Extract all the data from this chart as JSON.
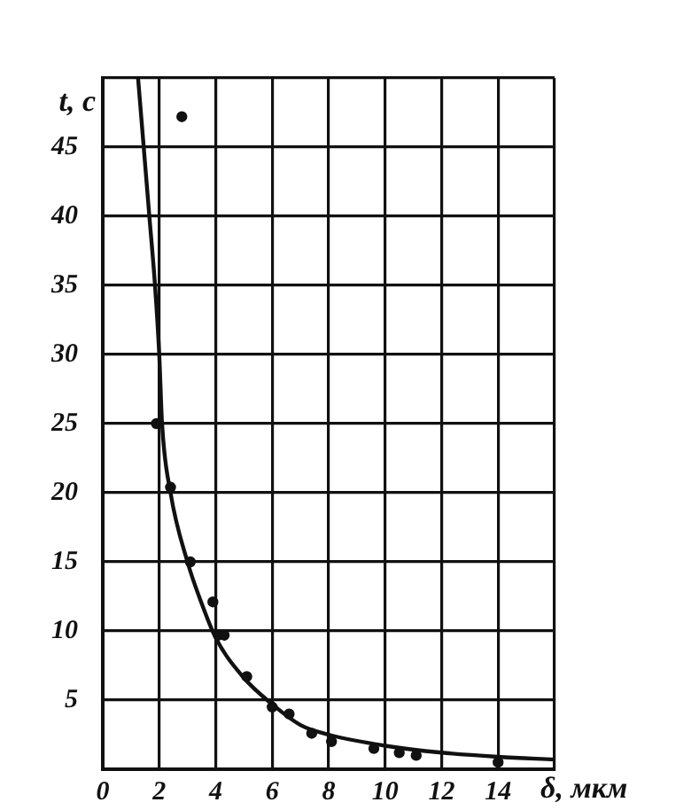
{
  "chart_data": {
    "type": "scatter",
    "xlabel": "δ, мкм",
    "ylabel": "t, c",
    "xlim": [
      0,
      16
    ],
    "ylim": [
      0,
      50
    ],
    "xticks": [
      0,
      2,
      4,
      6,
      8,
      10,
      12,
      14,
      {
        "value": 16,
        "label": null
      }
    ],
    "yticks": [
      {
        "value": 0,
        "label": null
      },
      5,
      10,
      15,
      20,
      25,
      30,
      35,
      40,
      45,
      {
        "value": 50,
        "label": null
      }
    ],
    "grid": true,
    "marker": "circle",
    "series": [
      {
        "color": "#111111",
        "x": [
          1.9,
          2.4,
          3.1,
          3.9,
          4.1,
          4.3,
          5.1,
          6.0,
          6.6,
          7.4,
          8.1,
          9.6,
          10.5,
          11.1,
          14.0,
          2.8
        ],
        "values": [
          25,
          20.4,
          15,
          12.1,
          9.7,
          9.7,
          6.7,
          4.5,
          4.0,
          2.6,
          2.0,
          1.5,
          1.2,
          1.0,
          0.5,
          47.2
        ]
      },
      {
        "type": "line",
        "color": "#111111",
        "marker": "none",
        "x": [
          1.25,
          1.45,
          1.65,
          1.85,
          2.0,
          2.1,
          2.4,
          3.0,
          3.5,
          4.0,
          5,
          6,
          7,
          8,
          10,
          12,
          14,
          16
        ],
        "values": [
          50,
          45,
          40,
          35,
          30,
          25,
          20,
          15,
          12,
          9.5,
          6.6,
          4.7,
          3.2,
          2.5,
          1.7,
          1.2,
          0.9,
          0.7
        ]
      }
    ]
  }
}
